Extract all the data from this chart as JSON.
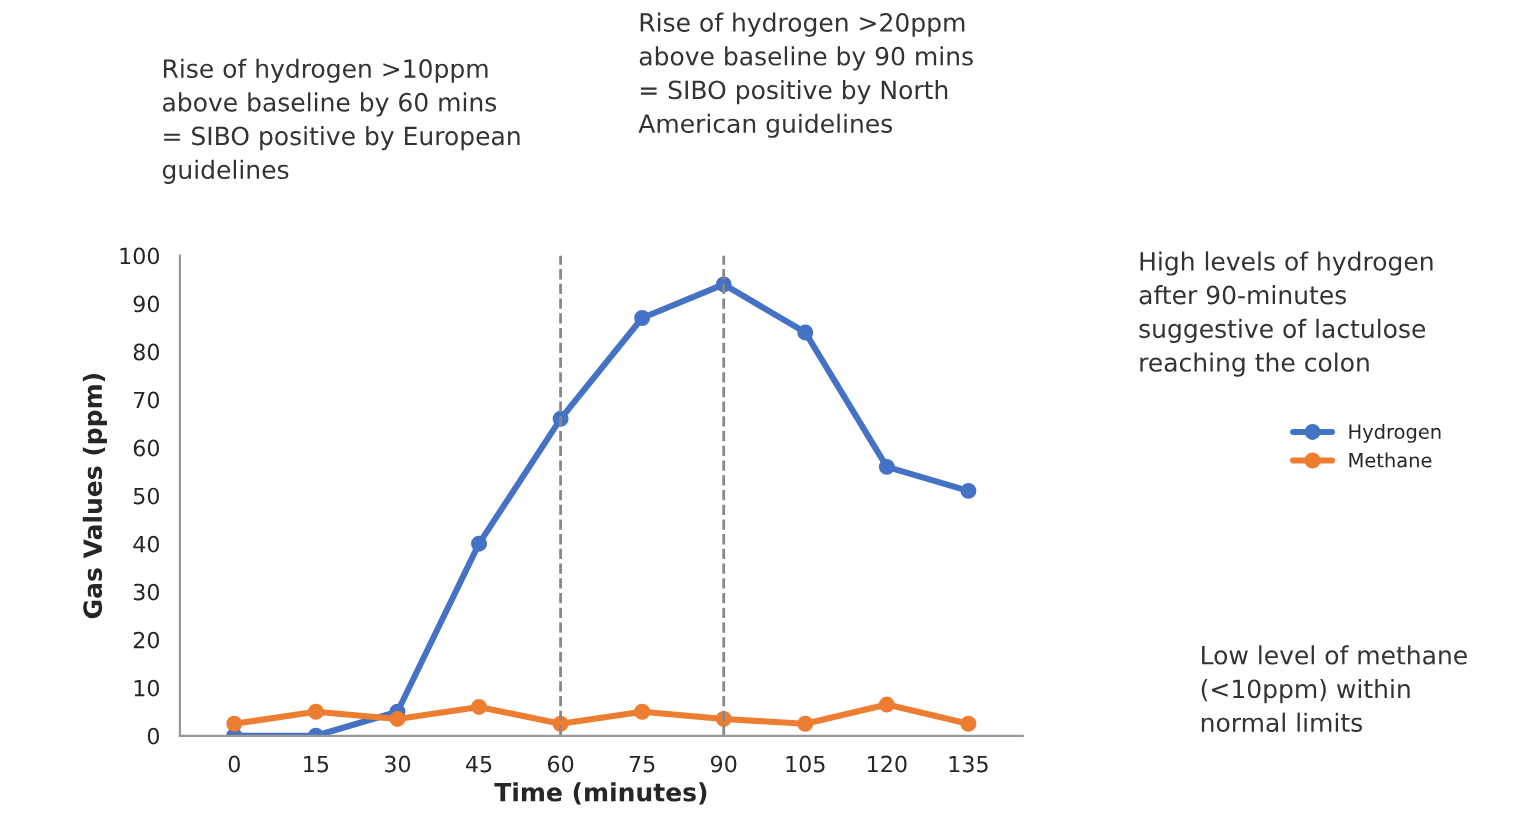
{
  "chart_data": {
    "type": "line",
    "xlabel": "Time (minutes)",
    "ylabel": "Gas Values (ppm)",
    "x": [
      0,
      15,
      30,
      45,
      60,
      75,
      90,
      105,
      120,
      135
    ],
    "series": [
      {
        "name": "Hydrogen",
        "color": "#4472c4",
        "values": [
          0,
          0,
          5,
          40,
          66,
          87,
          94,
          84,
          56,
          51
        ]
      },
      {
        "name": "Methane",
        "color": "#ed7d31",
        "values": [
          2.5,
          5,
          3.5,
          6,
          2.5,
          5,
          3.5,
          2.5,
          6.5,
          2.5
        ]
      }
    ],
    "xlim": [
      -10,
      145
    ],
    "xticks": [
      0,
      15,
      30,
      45,
      60,
      75,
      90,
      105,
      120,
      135
    ],
    "ylim": [
      0,
      100
    ],
    "yticks": [
      0,
      10,
      20,
      30,
      40,
      50,
      60,
      70,
      80,
      90,
      100
    ],
    "ref_lines": [
      {
        "axis": "x",
        "value": 60,
        "color": "#888888",
        "line_style": "dashed"
      },
      {
        "axis": "x",
        "value": 90,
        "color": "#888888",
        "line_style": "dashed"
      }
    ],
    "annotations": [
      "Rise of hydrogen >10ppm\nabove baseline by 60 mins\n= SIBO positive by European\nguidelines",
      "Rise of hydrogen >20ppm\nabove baseline by 90 mins\n= SIBO positive by North\nAmerican guidelines",
      "High levels of hydrogen\nafter 90-minutes\nsuggestive of lactulose\nreaching the colon",
      "Low level of methane\n(<10ppm) within\nnormal limits"
    ],
    "marker": "circle",
    "line_style": "solid",
    "grid": false,
    "legend": "right"
  }
}
